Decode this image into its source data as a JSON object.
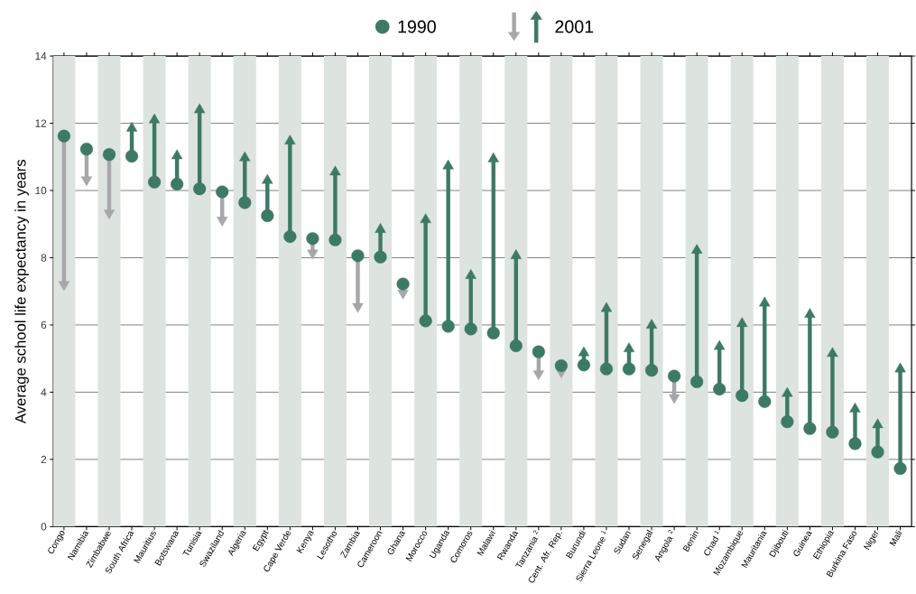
{
  "chart_data": {
    "type": "scatter",
    "ylabel": "Average school life expectancy in years",
    "categories": [
      "Congo",
      "Namibia",
      "Zimbabwe",
      "South Africa",
      "Mauritius",
      "Botswana",
      "Tunisia",
      "Swaziland",
      "Algeria",
      "Egypt",
      "Cape Verde",
      "Kenya",
      "Lesotho",
      "Zambia",
      "Cameroon",
      "Ghana",
      "Morocco",
      "Uganda",
      "Comoros",
      "Malawi",
      "Rwanda",
      "Tanzania $^{2}$",
      "Cent. Afr. Rep.",
      "Burundi",
      "Sierra Leone $^{1}$",
      "Sudan",
      "Senegal",
      "Angola $^{2}$",
      "Benin",
      "Chad $^{1}$",
      "Mozambique",
      "Mauritania",
      "Djibouti",
      "Guinea",
      "Ethiopia",
      "Burkina Faso",
      "Niger",
      "Mali"
    ],
    "series": [
      {
        "name": "1990",
        "marker": "circle",
        "color": "#3d7a66",
        "values": [
          11.62,
          11.23,
          11.07,
          11.02,
          10.25,
          10.19,
          10.05,
          9.96,
          9.64,
          9.25,
          8.63,
          8.57,
          8.53,
          8.06,
          8.02,
          7.22,
          6.12,
          5.96,
          5.88,
          5.76,
          5.38,
          5.2,
          4.79,
          4.81,
          4.69,
          4.69,
          4.65,
          4.48,
          4.31,
          4.09,
          3.9,
          3.72,
          3.12,
          2.92,
          2.81,
          2.47,
          2.22,
          1.73
        ]
      },
      {
        "name": "2001",
        "marker": "triangle",
        "color": "#3d7a66",
        "values": [
          7.2,
          10.32,
          9.33,
          11.85,
          12.1,
          11.03,
          12.4,
          9.12,
          10.97,
          10.3,
          11.47,
          8.14,
          10.55,
          6.55,
          8.84,
          6.95,
          9.13,
          10.73,
          7.47,
          10.94,
          8.06,
          4.55,
          4.6,
          5.17,
          6.49,
          5.29,
          5.99,
          3.84,
          8.22,
          5.36,
          6.04,
          6.65,
          3.96,
          6.31,
          5.15,
          3.5,
          3.03,
          4.69
        ],
        "colors": [
          "#a7a7ab",
          "#a7a7ab",
          "#a7a7ab",
          "#3d7a66",
          "#3d7a66",
          "#3d7a66",
          "#3d7a66",
          "#a7a7ab",
          "#3d7a66",
          "#3d7a66",
          "#3d7a66",
          "#a7a7ab",
          "#3d7a66",
          "#a7a7ab",
          "#3d7a66",
          "#a7a7ab",
          "#3d7a66",
          "#3d7a66",
          "#3d7a66",
          "#3d7a66",
          "#3d7a66",
          "#a7a7ab",
          "#a7a7ab",
          "#3d7a66",
          "#3d7a66",
          "#3d7a66",
          "#3d7a66",
          "#a7a7ab",
          "#3d7a66",
          "#3d7a66",
          "#3d7a66",
          "#3d7a66",
          "#3d7a66",
          "#3d7a66",
          "#3d7a66",
          "#3d7a66",
          "#3d7a66",
          "#3d7a66"
        ]
      }
    ],
    "ylim": [
      0,
      14
    ],
    "yticks": [
      0,
      2,
      4,
      6,
      8,
      10,
      12,
      14
    ],
    "grid": "y",
    "legend": "top"
  }
}
